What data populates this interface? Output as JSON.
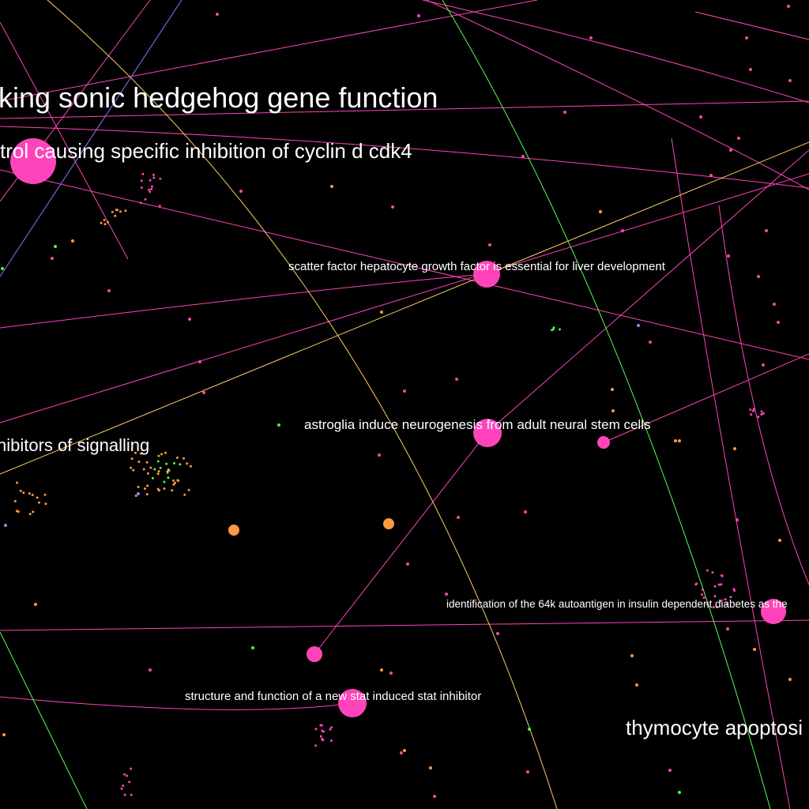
{
  "colors": {
    "background": "#000000",
    "label": "#ffffff",
    "magenta": "#ff44bb",
    "orange": "#ff9944",
    "green": "#44ff44",
    "blue": "#8888ff"
  },
  "labels": [
    {
      "id": "hedgehog",
      "text": "king sonic hedgehog gene function",
      "tier": "large"
    },
    {
      "id": "cyclin",
      "text": "trol causing specific inhibition of cyclin d cdk4",
      "tier": "medium"
    },
    {
      "id": "scatter",
      "text": "scatter factor hepatocyte growth factor is essential for liver development",
      "tier": "small"
    },
    {
      "id": "astroglia",
      "text": "astroglia induce neurogenesis from adult neural stem cells",
      "tier": "small-plus"
    },
    {
      "id": "signalling",
      "text": "hibitors of signalling",
      "tier": "medium"
    },
    {
      "id": "autoantigen",
      "text": "identification of the 64k autoantigen in insulin dependent diabetes as the",
      "tier": "tiny"
    },
    {
      "id": "stat",
      "text": "structure and function of a new stat induced stat inhibitor",
      "tier": "small"
    },
    {
      "id": "thymocyte",
      "text": "thymocyte apoptosi",
      "tier": "medium-plus"
    }
  ],
  "nodes": [
    {
      "id": "cyclin-node",
      "color": "magenta",
      "weight": 3
    },
    {
      "id": "scatter-node",
      "color": "magenta",
      "weight": 2
    },
    {
      "id": "astroglia-node",
      "color": "magenta",
      "weight": 2
    },
    {
      "id": "small-node-a",
      "color": "magenta",
      "weight": 1
    },
    {
      "id": "autoantigen-node",
      "color": "magenta",
      "weight": 2
    },
    {
      "id": "small-node-b",
      "color": "magenta",
      "weight": 1
    },
    {
      "id": "stat-node",
      "color": "magenta",
      "weight": 2
    },
    {
      "id": "orange-node-a",
      "color": "orange",
      "weight": 1
    },
    {
      "id": "orange-node-b",
      "color": "orange",
      "weight": 1
    }
  ]
}
